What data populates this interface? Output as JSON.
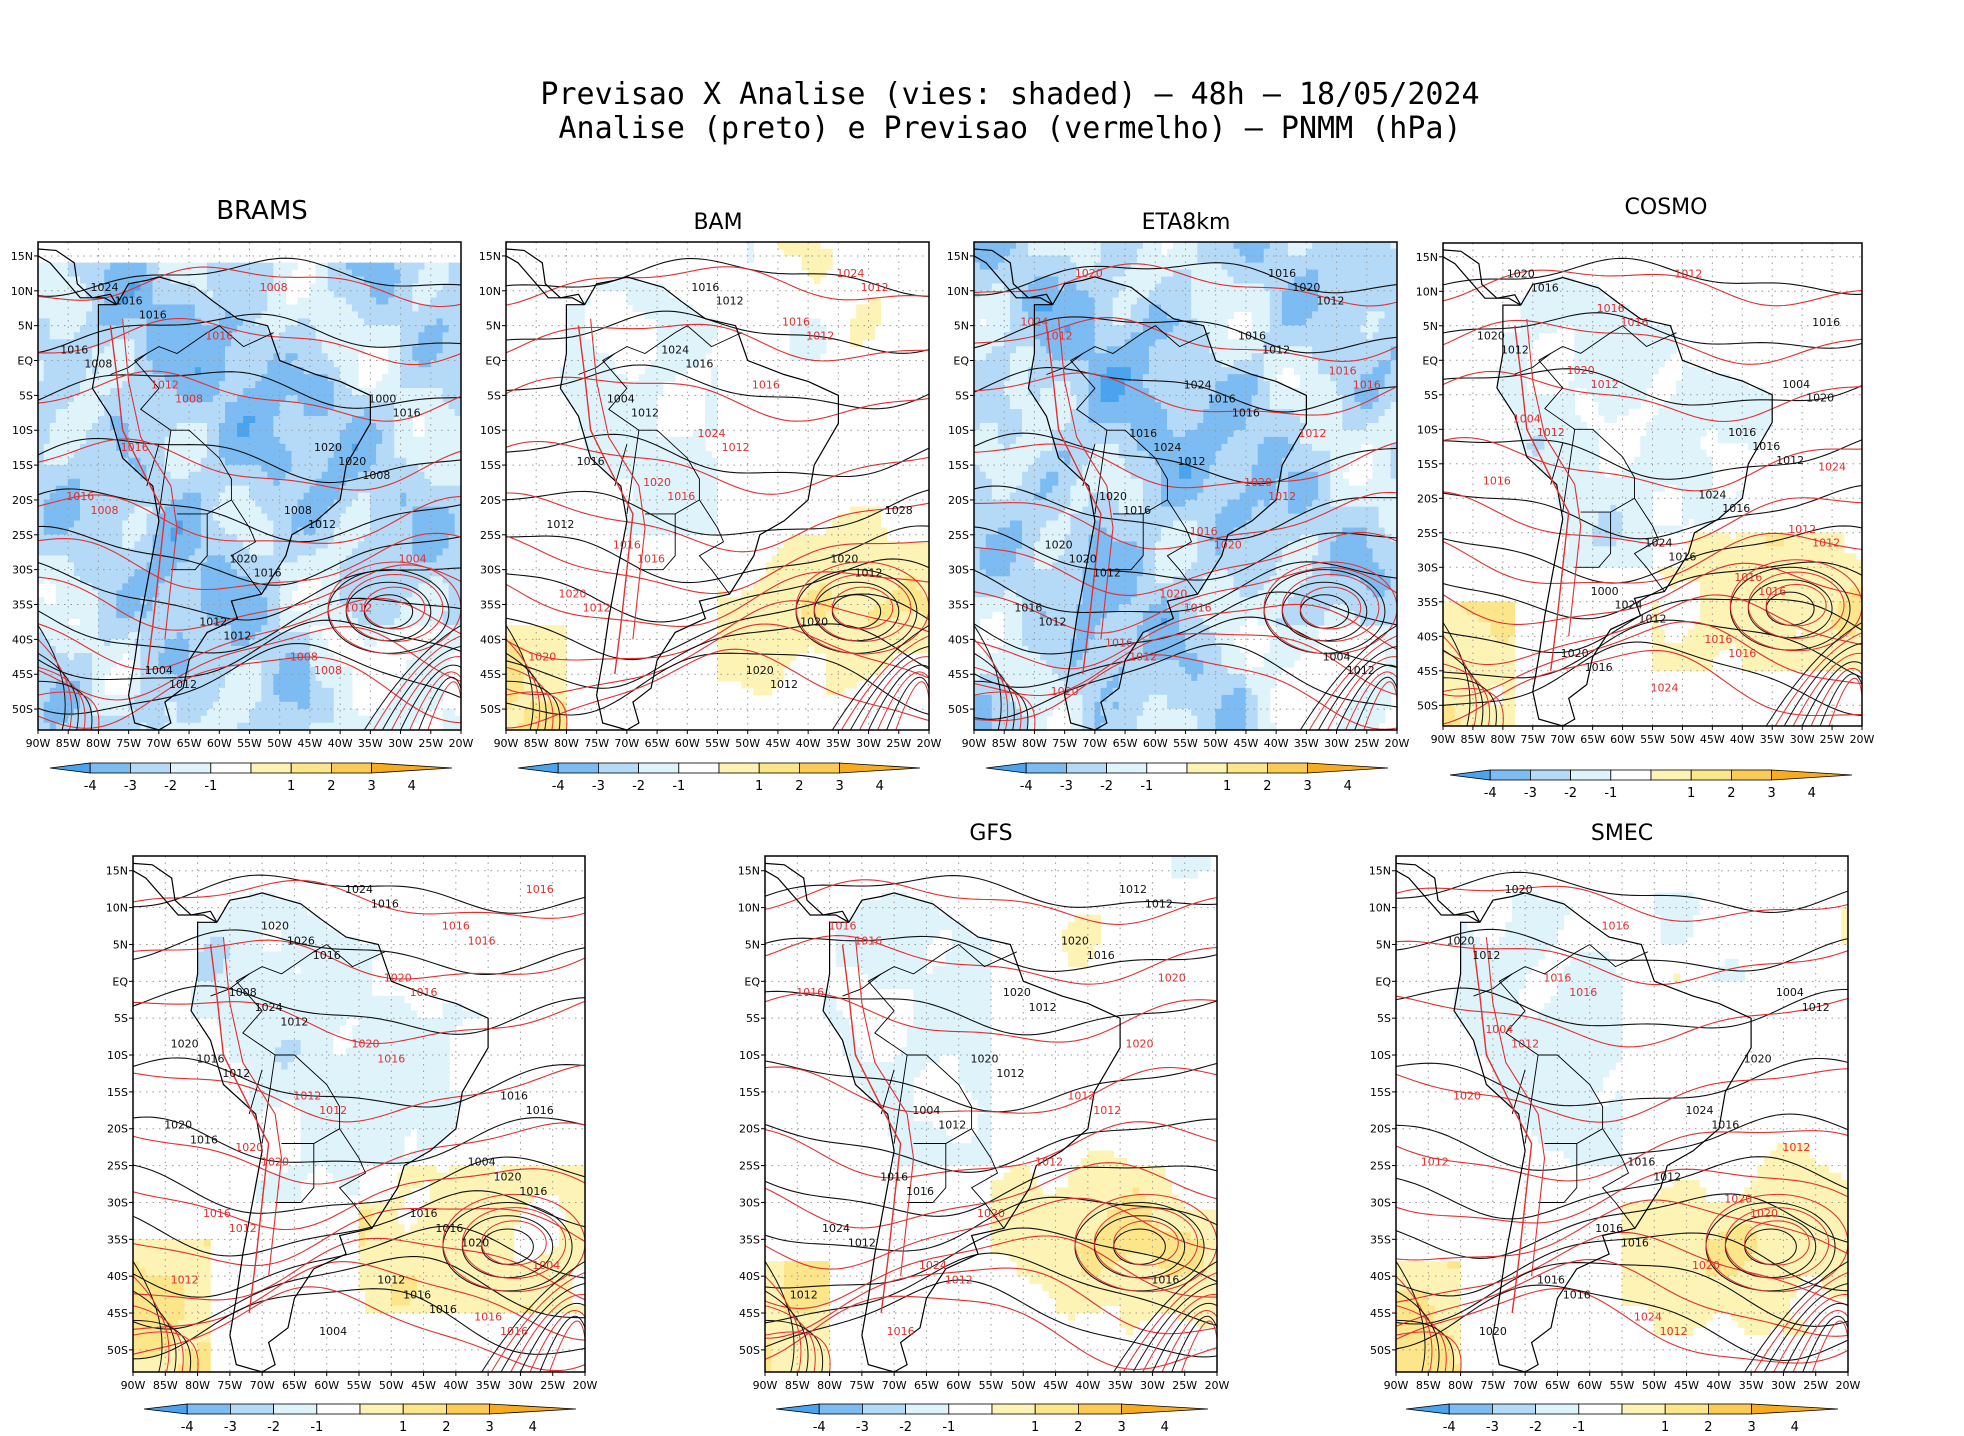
{
  "figure": {
    "title_line1": "Previsao X Analise (vies: shaded) – 48h – 18/05/2024",
    "title_line2": "Analise (preto) e Previsao (vermelho) – PNMM (hPa)"
  },
  "axes": {
    "lon_ticks": [
      "90W",
      "85W",
      "80W",
      "75W",
      "70W",
      "65W",
      "60W",
      "55W",
      "50W",
      "45W",
      "40W",
      "35W",
      "30W",
      "25W",
      "20W"
    ],
    "lat_ticks": [
      "15N",
      "10N",
      "5N",
      "EQ",
      "5S",
      "10S",
      "15S",
      "20S",
      "25S",
      "30S",
      "35S",
      "40S",
      "45S",
      "50S"
    ]
  },
  "colorbar": {
    "labels": [
      "-4",
      "-3",
      "-2",
      "-1",
      "1",
      "2",
      "3",
      "4"
    ],
    "colors": [
      "#4aa3ec",
      "#7dbcf2",
      "#b5daf8",
      "#dff3fb",
      "#ffffff",
      "#fdf3b4",
      "#fde58a",
      "#fccb55",
      "#f9ab1e"
    ]
  },
  "panels": [
    {
      "id": "brams",
      "title": "BRAMS",
      "bias": "cold",
      "black_labels": [
        "1016",
        "1008",
        "1012",
        "1008",
        "1012",
        "1012",
        "1016",
        "1016",
        "1016",
        "1020",
        "1012",
        "1016",
        "1008",
        "1004",
        "1000",
        "1020",
        "1024",
        "1020"
      ],
      "red_labels": [
        "1008",
        "1008",
        "1008",
        "1004",
        "1008",
        "1016",
        "1012",
        "1016",
        "1016",
        "1008",
        "1012"
      ]
    },
    {
      "id": "bam",
      "title": "BAM",
      "bias": "warm",
      "black_labels": [
        "1016",
        "1012",
        "1012",
        "1012",
        "1012",
        "1012",
        "1016",
        "1020",
        "1024",
        "1028",
        "1020",
        "1004",
        "1020",
        "1016"
      ],
      "red_labels": [
        "1016",
        "1012",
        "1012",
        "1012",
        "1012",
        "1016",
        "1020",
        "1016",
        "1016",
        "1024",
        "1024",
        "1020",
        "1016",
        "1020"
      ]
    },
    {
      "id": "eta8km",
      "title": "ETA8km",
      "bias": "cold",
      "black_labels": [
        "1016",
        "1012",
        "1012",
        "1012",
        "1012",
        "1012",
        "1016",
        "1012",
        "1016",
        "1020",
        "1020",
        "1024",
        "1016",
        "1016",
        "1020",
        "1004",
        "1024",
        "1020",
        "1016",
        "1016"
      ],
      "red_labels": [
        "1016",
        "1012",
        "1012",
        "1012",
        "1016",
        "1020",
        "1020",
        "1012",
        "1020",
        "1024",
        "1020",
        "1016",
        "1016",
        "1016",
        "1020"
      ]
    },
    {
      "id": "cosmo",
      "title": "COSMO",
      "bias": "mixed",
      "black_labels": [
        "1012",
        "1012",
        "1012",
        "1016",
        "1016",
        "1020",
        "1016",
        "1016",
        "1016",
        "1024",
        "1020",
        "1024",
        "1020",
        "1004",
        "1024",
        "1020",
        "1016",
        "1000",
        "1016"
      ],
      "red_labels": [
        "1016",
        "1012",
        "1012",
        "1012",
        "1012",
        "1016",
        "1016",
        "1016",
        "1016",
        "1020",
        "1012",
        "1024",
        "1004",
        "1016",
        "1016",
        "1024"
      ]
    },
    {
      "id": "panel5",
      "title": "",
      "bias": "mixed",
      "black_labels": [
        "1016",
        "1016",
        "1012",
        "1016",
        "1016",
        "1012",
        "1020",
        "1016",
        "1020",
        "1016",
        "1024",
        "1020",
        "1024",
        "1016",
        "1016",
        "1026",
        "1016",
        "1012",
        "1008",
        "1004",
        "1004",
        "1020",
        "1016",
        "1020",
        "1016"
      ],
      "red_labels": [
        "1016",
        "1016",
        "1012",
        "1016",
        "1012",
        "1012",
        "1016",
        "1020",
        "1016",
        "1020",
        "1016",
        "1016",
        "1012",
        "1004",
        "1020",
        "1020",
        "1016"
      ]
    },
    {
      "id": "gfs",
      "title": "GFS",
      "bias": "warm",
      "black_labels": [
        "1016",
        "1012",
        "1012",
        "1012",
        "1016",
        "1012",
        "1012",
        "1012",
        "1016",
        "1012",
        "1020",
        "1024",
        "1020",
        "1004",
        "1016",
        "1020"
      ],
      "red_labels": [
        "1016",
        "1012",
        "1012",
        "1016",
        "1012",
        "1016",
        "1020",
        "1020",
        "1016",
        "1012",
        "1024",
        "1020"
      ]
    },
    {
      "id": "smec",
      "title": "SMEC",
      "bias": "warm",
      "black_labels": [
        "1016",
        "1012",
        "1016",
        "1016",
        "1012",
        "1012",
        "1020",
        "1020",
        "1016",
        "1020",
        "1024",
        "1016",
        "1004",
        "1016",
        "1020"
      ],
      "red_labels": [
        "1016",
        "1012",
        "1012",
        "1012",
        "1020",
        "1016",
        "1020",
        "1020",
        "1016",
        "1012",
        "1024",
        "1004",
        "1020"
      ]
    }
  ]
}
